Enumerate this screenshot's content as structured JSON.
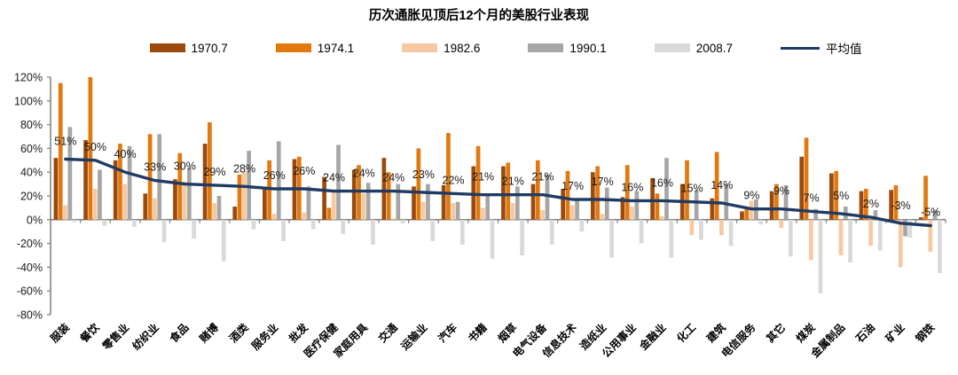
{
  "title": "历次通胀见顶后12个月的美股行业表现",
  "chart_data": {
    "type": "bar",
    "title": "历次通胀见顶后12个月的美股行业表现",
    "xlabel": "",
    "ylabel": "",
    "ylim": [
      -80,
      120
    ],
    "ytick_step": 20,
    "ytick_suffix": "%",
    "grid": false,
    "legend_position": "top",
    "categories": [
      "服装",
      "餐饮",
      "零售业",
      "纺织业",
      "食品",
      "赌博",
      "酒类",
      "服务业",
      "批发",
      "医疗保健",
      "家庭用具",
      "交通",
      "运输业",
      "汽车",
      "书籍",
      "烟草",
      "电气设备",
      "信息技术",
      "造纸业",
      "公用事业",
      "金融业",
      "化工",
      "建筑",
      "电信服务",
      "其它",
      "煤炭",
      "金属制品",
      "石油",
      "矿业",
      "钢铁"
    ],
    "series": [
      {
        "name": "1970.7",
        "color": "#9a4a0d",
        "values": [
          52,
          67,
          50,
          22,
          34,
          64,
          11,
          27,
          51,
          36,
          42,
          52,
          28,
          29,
          45,
          45,
          30,
          26,
          40,
          19,
          35,
          30,
          18,
          7,
          24,
          53,
          39,
          24,
          25,
          2
        ]
      },
      {
        "name": "1974.1",
        "color": "#e2790f",
        "values": [
          115,
          120,
          64,
          72,
          56,
          82,
          38,
          50,
          53,
          10,
          46,
          40,
          60,
          73,
          62,
          48,
          50,
          41,
          45,
          46,
          22,
          50,
          57,
          9,
          30,
          69,
          41,
          26,
          29,
          37
        ]
      },
      {
        "name": "1982.6",
        "color": "#f7c9a2",
        "values": [
          12,
          26,
          30,
          18,
          32,
          14,
          41,
          5,
          6,
          23,
          22,
          1,
          15,
          14,
          10,
          14,
          8,
          12,
          5,
          11,
          3,
          -13,
          -13,
          16,
          -7,
          -34,
          -30,
          -22,
          -40,
          -27
        ]
      },
      {
        "name": "1990.1",
        "color": "#a6a6a6",
        "values": [
          78,
          42,
          62,
          72,
          44,
          20,
          58,
          66,
          28,
          63,
          31,
          30,
          30,
          15,
          21,
          28,
          38,
          16,
          27,
          24,
          52,
          25,
          30,
          17,
          29,
          9,
          11,
          8,
          -14,
          8
        ]
      },
      {
        "name": "2008.7",
        "color": "#d9d9d9",
        "values": [
          -2,
          -5,
          -6,
          -19,
          -16,
          -35,
          -8,
          -18,
          -8,
          -12,
          -21,
          -3,
          -18,
          -21,
          -33,
          -30,
          -21,
          -10,
          -32,
          -20,
          -32,
          -17,
          -22,
          -4,
          -31,
          -62,
          -36,
          -26,
          -15,
          -45
        ]
      }
    ],
    "line_series": {
      "name": "平均值",
      "color": "#1f3b63",
      "values": [
        51,
        50,
        40,
        33,
        30,
        29,
        28,
        26,
        26,
        24,
        24,
        24,
        23,
        22,
        21,
        21,
        21,
        17,
        17,
        16,
        16,
        15,
        14,
        9,
        9,
        7,
        5,
        2,
        -3,
        -5
      ]
    },
    "data_labels": [
      "51%",
      "50%",
      "40%",
      "33%",
      "30%",
      "29%",
      "28%",
      "26%",
      "26%",
      "24%",
      "24%",
      "24%",
      "23%",
      "22%",
      "21%",
      "21%",
      "21%",
      "17%",
      "17%",
      "16%",
      "16%",
      "15%",
      "14%",
      "9%",
      "9%",
      "7%",
      "5%",
      "2%",
      "-3%",
      "-5%"
    ]
  }
}
